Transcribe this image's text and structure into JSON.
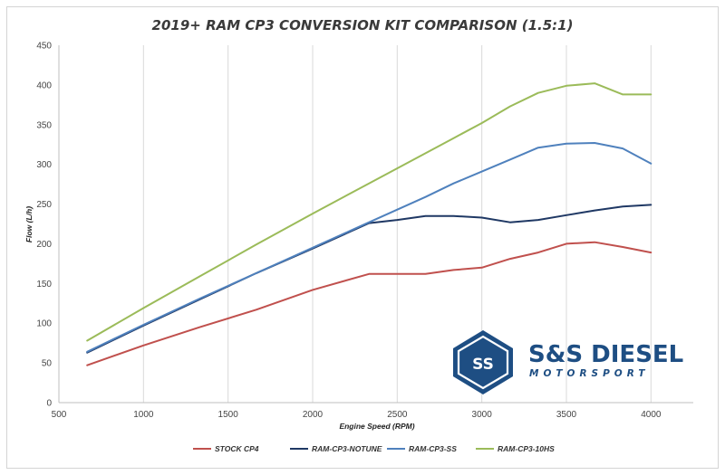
{
  "chart_data": {
    "type": "line",
    "title": "2019+ RAM CP3 CONVERSION KIT COMPARISON (1.5:1)",
    "xlabel": "Engine Speed (RPM)",
    "ylabel": "Flow (L/h)",
    "xlim": [
      500,
      4250
    ],
    "ylim": [
      0,
      450
    ],
    "xticks": [
      500,
      1000,
      1500,
      2000,
      2500,
      3000,
      3500,
      4000
    ],
    "yticks": [
      0,
      50,
      100,
      150,
      200,
      250,
      300,
      350,
      400,
      450
    ],
    "grid": "vertical",
    "legend_position": "bottom",
    "series": [
      {
        "name": "STOCK CP4",
        "color": "#c0504d",
        "x": [
          667,
          1000,
          1333,
          1667,
          2000,
          2333,
          2667,
          2833,
          3000,
          3167,
          3333,
          3500,
          3667,
          3833,
          4000
        ],
        "y": [
          47,
          72,
          95,
          117,
          142,
          162,
          162,
          167,
          170,
          181,
          189,
          200,
          202,
          196,
          189
        ]
      },
      {
        "name": "RAM-CP3-NOTUNE",
        "color": "#1f3864",
        "x": [
          667,
          1000,
          1333,
          1667,
          2000,
          2333,
          2500,
          2667,
          2833,
          3000,
          3167,
          3333,
          3500,
          3667,
          3833,
          4000
        ],
        "y": [
          63,
          97,
          130,
          163,
          194,
          226,
          230,
          235,
          235,
          233,
          227,
          230,
          236,
          242,
          247,
          249
        ]
      },
      {
        "name": "RAM-CP3-SS",
        "color": "#4f81bd",
        "x": [
          667,
          1000,
          1333,
          1667,
          2000,
          2333,
          2667,
          2833,
          3000,
          3167,
          3333,
          3500,
          3667,
          3833,
          4000
        ],
        "y": [
          64,
          98,
          131,
          163,
          195,
          227,
          259,
          276,
          291,
          306,
          321,
          326,
          327,
          320,
          301
        ]
      },
      {
        "name": "RAM-CP3-10HS",
        "color": "#9bbb59",
        "x": [
          667,
          1000,
          1333,
          1667,
          2000,
          2333,
          2667,
          2833,
          3000,
          3167,
          3333,
          3500,
          3667,
          3833,
          4000
        ],
        "y": [
          78,
          119,
          159,
          199,
          238,
          276,
          314,
          333,
          352,
          373,
          390,
          399,
          402,
          388,
          388
        ]
      }
    ]
  },
  "logo": {
    "monogram": "SS",
    "name": "S&S DIESEL",
    "tagline": "MOTORSPORT",
    "color": "#1e4e83"
  }
}
